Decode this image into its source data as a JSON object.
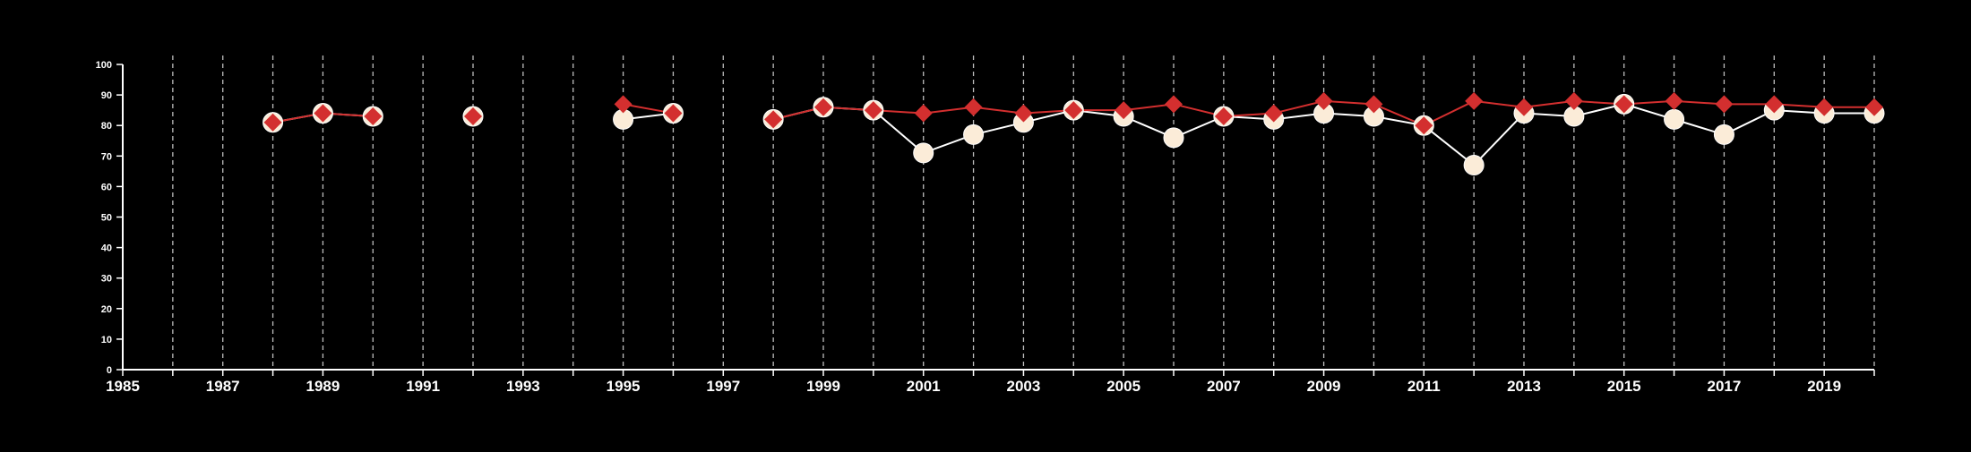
{
  "chart_data": {
    "type": "line",
    "title": "",
    "xlabel": "",
    "ylabel": "",
    "xlim": [
      1985,
      2020
    ],
    "ylim": [
      0,
      100
    ],
    "x_ticks": [
      1985,
      1986,
      1987,
      1988,
      1989,
      1990,
      1991,
      1992,
      1993,
      1994,
      1995,
      1996,
      1997,
      1998,
      1999,
      2000,
      2001,
      2002,
      2003,
      2004,
      2005,
      2006,
      2007,
      2008,
      2009,
      2010,
      2011,
      2012,
      2013,
      2014,
      2015,
      2016,
      2017,
      2018,
      2019,
      2020
    ],
    "x_tick_labels": [
      "1985",
      "",
      "1987",
      "",
      "1989",
      "",
      "1991",
      "",
      "1993",
      "",
      "1995",
      "",
      "1997",
      "",
      "1999",
      "",
      "2001",
      "",
      "2003",
      "",
      "2005",
      "",
      "2007",
      "",
      "2009",
      "",
      "2011",
      "",
      "2013",
      "",
      "2015",
      "",
      "2017",
      "",
      "2019",
      ""
    ],
    "y_ticks": [
      0,
      10,
      20,
      30,
      40,
      50,
      60,
      70,
      80,
      90,
      100
    ],
    "grid": "vertical dashed at each year",
    "legend": "none",
    "series": [
      {
        "color": "#fbecd8",
        "line_color": "#ffffff",
        "marker": "circle",
        "points": [
          [
            1988,
            81
          ],
          [
            1989,
            84
          ],
          [
            1990,
            83
          ],
          [
            1992,
            83
          ],
          [
            1995,
            82
          ],
          [
            1996,
            84
          ],
          [
            1998,
            82
          ],
          [
            1999,
            86
          ],
          [
            2000,
            85
          ],
          [
            2001,
            71
          ],
          [
            2002,
            77
          ],
          [
            2003,
            81
          ],
          [
            2004,
            85
          ],
          [
            2005,
            83
          ],
          [
            2006,
            76
          ],
          [
            2007,
            83
          ],
          [
            2008,
            82
          ],
          [
            2009,
            84
          ],
          [
            2010,
            83
          ],
          [
            2011,
            80
          ],
          [
            2012,
            67
          ],
          [
            2013,
            84
          ],
          [
            2014,
            83
          ],
          [
            2015,
            87
          ],
          [
            2016,
            82
          ],
          [
            2017,
            77
          ],
          [
            2018,
            85
          ],
          [
            2019,
            84
          ],
          [
            2020,
            84
          ]
        ]
      },
      {
        "color": "#d32f2f",
        "line_color": "#d32f2f",
        "marker": "diamond",
        "points": [
          [
            1988,
            81
          ],
          [
            1989,
            84
          ],
          [
            1990,
            83
          ],
          [
            1992,
            83
          ],
          [
            1995,
            87
          ],
          [
            1996,
            84
          ],
          [
            1998,
            82
          ],
          [
            1999,
            86
          ],
          [
            2000,
            85
          ],
          [
            2001,
            84
          ],
          [
            2002,
            86
          ],
          [
            2003,
            84
          ],
          [
            2004,
            85
          ],
          [
            2005,
            85
          ],
          [
            2006,
            87
          ],
          [
            2007,
            83
          ],
          [
            2008,
            84
          ],
          [
            2009,
            88
          ],
          [
            2010,
            87
          ],
          [
            2011,
            80
          ],
          [
            2012,
            88
          ],
          [
            2013,
            86
          ],
          [
            2014,
            88
          ],
          [
            2015,
            87
          ],
          [
            2016,
            88
          ],
          [
            2017,
            87
          ],
          [
            2018,
            87
          ],
          [
            2019,
            86
          ],
          [
            2020,
            86
          ]
        ]
      }
    ]
  }
}
